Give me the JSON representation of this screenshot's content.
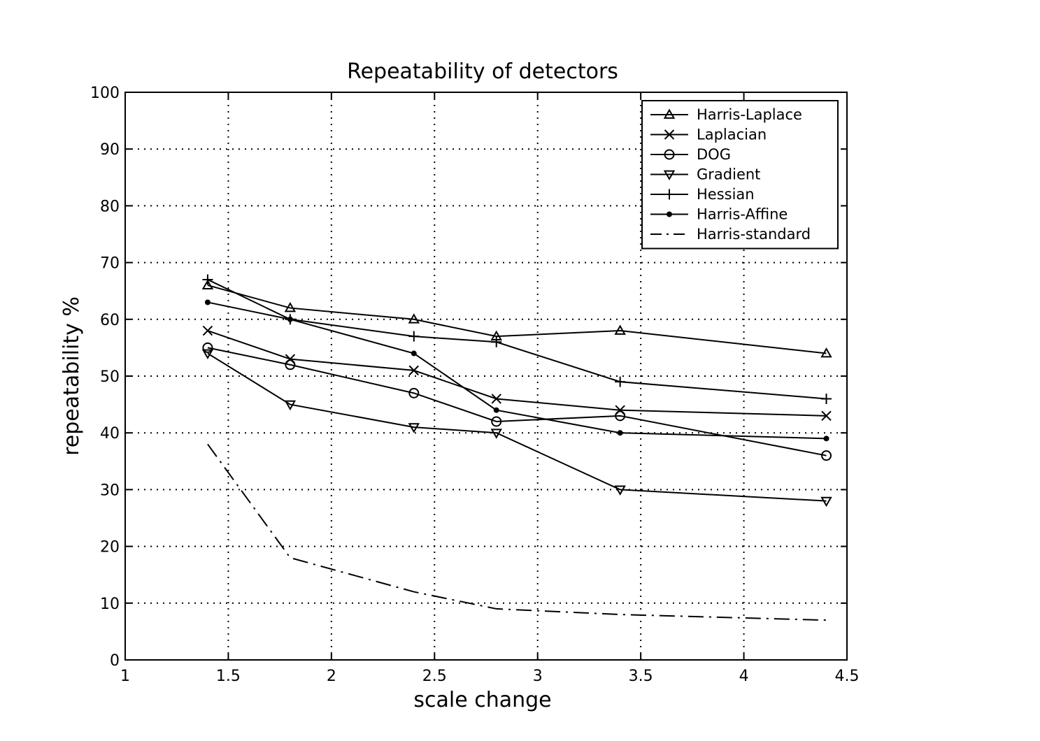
{
  "chart_data": {
    "type": "line",
    "title": "Repeatability of detectors",
    "xlabel": "scale change",
    "ylabel": "repeatability %",
    "xlim": [
      1,
      4.5
    ],
    "ylim": [
      0,
      100
    ],
    "xticks": [
      "1",
      "1.5",
      "2",
      "2.5",
      "3",
      "3.5",
      "4",
      "4.5"
    ],
    "yticks": [
      "0",
      "10",
      "20",
      "30",
      "40",
      "50",
      "60",
      "70",
      "80",
      "90",
      "100"
    ],
    "grid": true,
    "legend_position": "top-right",
    "x": [
      1.4,
      1.8,
      2.4,
      2.8,
      3.4,
      4.4
    ],
    "series": [
      {
        "name": "Harris-Laplace",
        "marker": "triangle-up",
        "line": "solid",
        "values": [
          66,
          62,
          60,
          57,
          58,
          54
        ]
      },
      {
        "name": "Laplacian",
        "marker": "x",
        "line": "solid",
        "values": [
          58,
          53,
          51,
          46,
          44,
          43
        ]
      },
      {
        "name": "DOG",
        "marker": "circle",
        "line": "solid",
        "values": [
          55,
          52,
          47,
          42,
          43,
          36
        ]
      },
      {
        "name": "Gradient",
        "marker": "triangle-down",
        "line": "solid",
        "values": [
          54,
          45,
          41,
          40,
          30,
          28
        ]
      },
      {
        "name": "Hessian",
        "marker": "plus",
        "line": "solid",
        "values": [
          67,
          60,
          57,
          56,
          49,
          46
        ]
      },
      {
        "name": "Harris-Affine",
        "marker": "dot",
        "line": "solid",
        "values": [
          63,
          60,
          54,
          44,
          40,
          39
        ]
      },
      {
        "name": "Harris-standard",
        "marker": "none",
        "line": "dashdot",
        "values": [
          38,
          18,
          12,
          9,
          8,
          7
        ]
      }
    ]
  }
}
